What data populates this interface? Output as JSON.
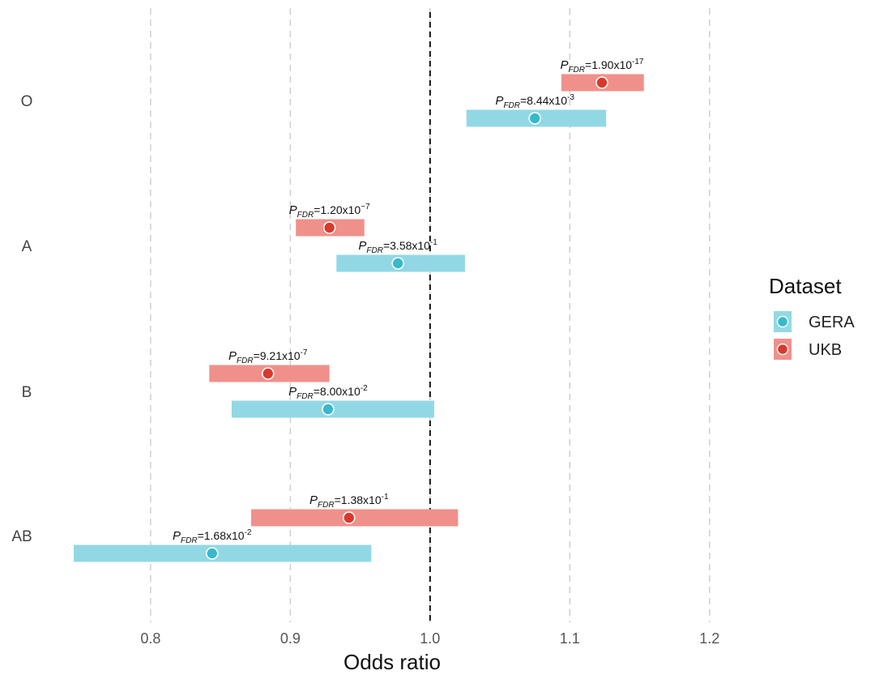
{
  "chart_data": {
    "type": "forest",
    "xlabel": "Odds ratio",
    "xlim": [
      0.745,
      1.29
    ],
    "xticks": [
      0.8,
      0.9,
      1.0,
      1.1,
      1.2
    ],
    "xtick_labels": [
      "0.8",
      "0.9",
      "1.0",
      "1.1",
      "1.2"
    ],
    "reference_line": 1.0,
    "categories": [
      "O",
      "A",
      "B",
      "AB"
    ],
    "series": [
      {
        "name": "UKB",
        "bar_color": "#f0908a",
        "point_color": "#d9392d",
        "points": [
          {
            "category": "O",
            "or": 1.123,
            "lower": 1.094,
            "upper": 1.153,
            "p_label": {
              "prefix": "P",
              "sub": "FDR",
              "value": "=1.90x10",
              "exp": "-17"
            }
          },
          {
            "category": "A",
            "or": 0.928,
            "lower": 0.904,
            "upper": 0.953,
            "p_label": {
              "prefix": "P",
              "sub": "FDR",
              "value": "=1.20x10",
              "exp": "−7"
            }
          },
          {
            "category": "B",
            "or": 0.884,
            "lower": 0.842,
            "upper": 0.928,
            "p_label": {
              "prefix": "P",
              "sub": "FDR",
              "value": "=9.21x10",
              "exp": "-7"
            }
          },
          {
            "category": "AB",
            "or": 0.942,
            "lower": 0.872,
            "upper": 1.02,
            "p_label": {
              "prefix": "P",
              "sub": "FDR",
              "value": "=1.38x10",
              "exp": "-1"
            }
          }
        ]
      },
      {
        "name": "GERA",
        "bar_color": "#92d8e4",
        "point_color": "#38b8cc",
        "points": [
          {
            "category": "O",
            "or": 1.075,
            "lower": 1.026,
            "upper": 1.126,
            "p_label": {
              "prefix": "P",
              "sub": "FDR",
              "value": "=8.44x10",
              "exp": "-3"
            }
          },
          {
            "category": "A",
            "or": 0.977,
            "lower": 0.933,
            "upper": 1.025,
            "p_label": {
              "prefix": "P",
              "sub": "FDR",
              "value": "=3.58x10",
              "exp": "-1"
            }
          },
          {
            "category": "B",
            "or": 0.927,
            "lower": 0.858,
            "upper": 1.003,
            "p_label": {
              "prefix": "P",
              "sub": "FDR",
              "value": "=8.00x10",
              "exp": "-2"
            }
          },
          {
            "category": "AB",
            "or": 0.844,
            "lower": 0.745,
            "upper": 0.958,
            "p_label": {
              "prefix": "P",
              "sub": "FDR",
              "value": "=1.68x10",
              "exp": "-2"
            }
          }
        ]
      }
    ],
    "legend": {
      "title": "Dataset",
      "position": "right",
      "entries": [
        {
          "name": "GERA",
          "bar_color": "#92d8e4",
          "point_color": "#38b8cc"
        },
        {
          "name": "UKB",
          "bar_color": "#f0908a",
          "point_color": "#d9392d"
        }
      ]
    }
  }
}
